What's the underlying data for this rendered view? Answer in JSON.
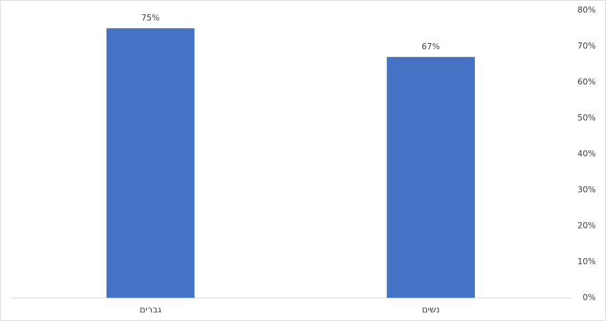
{
  "chart_data": {
    "type": "bar",
    "categories": [
      "גברים",
      "נשים"
    ],
    "values": [
      75,
      67
    ],
    "value_labels": [
      "75%",
      "67%"
    ],
    "color": "#4472c4",
    "ylim": [
      0,
      80
    ],
    "yticks": [
      {
        "value": 0,
        "label": "0%"
      },
      {
        "value": 10,
        "label": "10%"
      },
      {
        "value": 20,
        "label": "20%"
      },
      {
        "value": 30,
        "label": "30%"
      },
      {
        "value": 40,
        "label": "40%"
      },
      {
        "value": 50,
        "label": "50%"
      },
      {
        "value": 60,
        "label": "60%"
      },
      {
        "value": 70,
        "label": "70%"
      },
      {
        "value": 80,
        "label": "80%"
      }
    ],
    "y_axis_side": "right",
    "grid": false
  }
}
